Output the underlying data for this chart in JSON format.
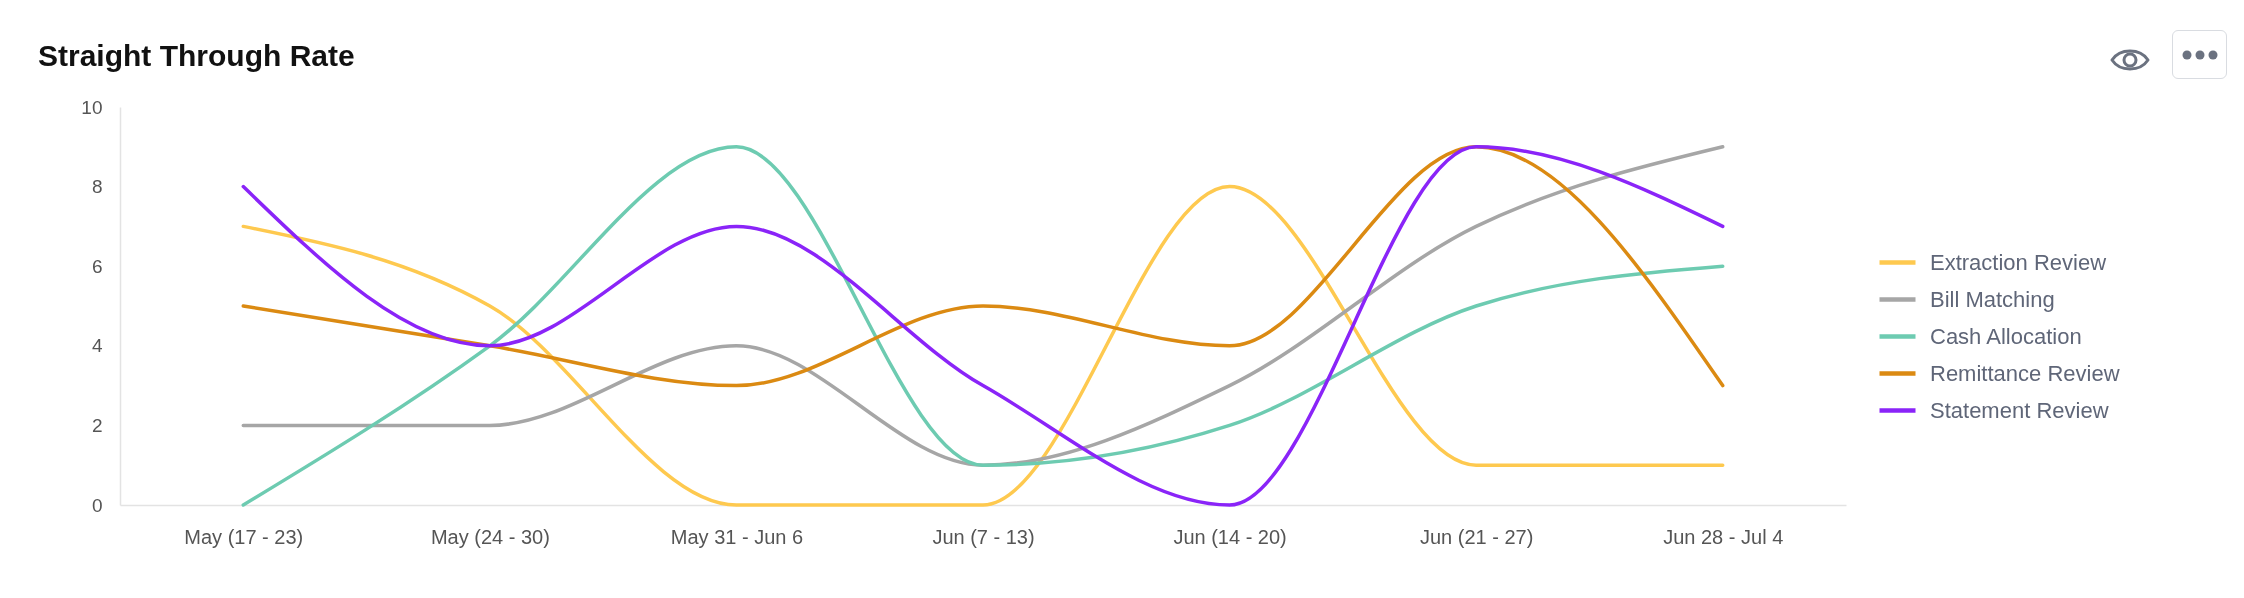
{
  "chart_data": {
    "type": "line",
    "title": "Straight Through Rate",
    "categories": [
      "May (17 - 23)",
      "May (24 - 30)",
      "May 31 - Jun 6",
      "Jun (7 - 13)",
      "Jun (14 - 20)",
      "Jun (21 - 27)",
      "Jun 28 - Jul 4"
    ],
    "series": [
      {
        "name": "Extraction Review",
        "color": "#fec94f",
        "values": [
          7,
          5,
          0,
          0,
          8,
          1,
          1
        ]
      },
      {
        "name": "Bill Matching",
        "color": "#a6a6a6",
        "values": [
          2,
          2,
          4,
          1,
          3,
          7,
          9
        ]
      },
      {
        "name": "Cash Allocation",
        "color": "#6dcbb1",
        "values": [
          0,
          4,
          9,
          1,
          2,
          5,
          6
        ]
      },
      {
        "name": "Remittance Review",
        "color": "#db8a12",
        "values": [
          5,
          4,
          3,
          5,
          4,
          9,
          3
        ]
      },
      {
        "name": "Statement Review",
        "color": "#8a24f8",
        "values": [
          8,
          4,
          7,
          3,
          0,
          9,
          7
        ]
      }
    ],
    "ylim": [
      0,
      10
    ],
    "yticks": [
      0,
      2,
      4,
      6,
      8,
      10
    ],
    "legend": "right"
  }
}
